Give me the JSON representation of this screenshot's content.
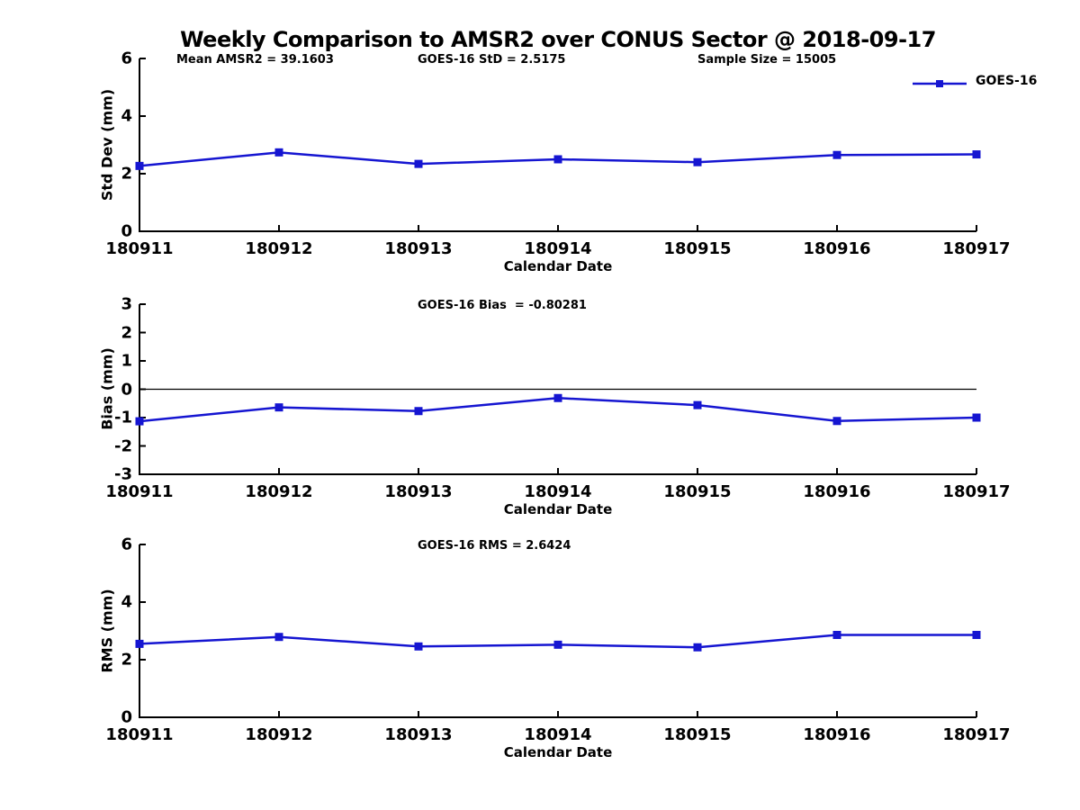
{
  "figure": {
    "title": "Weekly Comparison to AMSR2 over CONUS Sector @ 2018-09-17",
    "background_color": "#ffffff",
    "axis_color": "#000000"
  },
  "legend": {
    "label": "GOES-16",
    "color": "#1515d1",
    "marker": "filled-square",
    "position": "top-right"
  },
  "chart_data": [
    {
      "id": "std-dev",
      "type": "line",
      "categories": [
        "180911",
        "180912",
        "180913",
        "180914",
        "180915",
        "180916",
        "180917"
      ],
      "series": [
        {
          "name": "GOES-16",
          "color": "#1515d1",
          "marker": "square",
          "values": [
            2.27,
            2.74,
            2.34,
            2.5,
            2.4,
            2.65,
            2.67
          ]
        }
      ],
      "xlabel": "Calendar Date",
      "ylabel": "Std Dev (mm)",
      "ylim": [
        0,
        6
      ],
      "yticks": [
        0,
        2,
        4,
        6
      ],
      "zero_line": false,
      "grid": false,
      "annotations": [
        "Mean AMSR2 = 39.1603",
        "GOES-16 StD = 2.5175",
        "Sample Size = 15005"
      ]
    },
    {
      "id": "bias",
      "type": "line",
      "categories": [
        "180911",
        "180912",
        "180913",
        "180914",
        "180915",
        "180916",
        "180917"
      ],
      "series": [
        {
          "name": "GOES-16",
          "color": "#1515d1",
          "marker": "square",
          "values": [
            -1.13,
            -0.64,
            -0.77,
            -0.31,
            -0.56,
            -1.12,
            -1.0
          ]
        }
      ],
      "xlabel": "Calendar Date",
      "ylabel": "Bias (mm)",
      "ylim": [
        -3,
        3
      ],
      "yticks": [
        -3,
        -2,
        -1,
        0,
        1,
        2,
        3
      ],
      "zero_line": true,
      "grid": false,
      "annotations": [
        "GOES-16 Bias  = -0.80281"
      ]
    },
    {
      "id": "rms",
      "type": "line",
      "categories": [
        "180911",
        "180912",
        "180913",
        "180914",
        "180915",
        "180916",
        "180917"
      ],
      "series": [
        {
          "name": "GOES-16",
          "color": "#1515d1",
          "marker": "square",
          "values": [
            2.55,
            2.79,
            2.46,
            2.52,
            2.43,
            2.86,
            2.86
          ]
        }
      ],
      "xlabel": "Calendar Date",
      "ylabel": "RMS (mm)",
      "ylim": [
        0,
        6
      ],
      "yticks": [
        0,
        2,
        4,
        6
      ],
      "zero_line": false,
      "grid": false,
      "annotations": [
        "GOES-16 RMS = 2.6424"
      ]
    }
  ]
}
